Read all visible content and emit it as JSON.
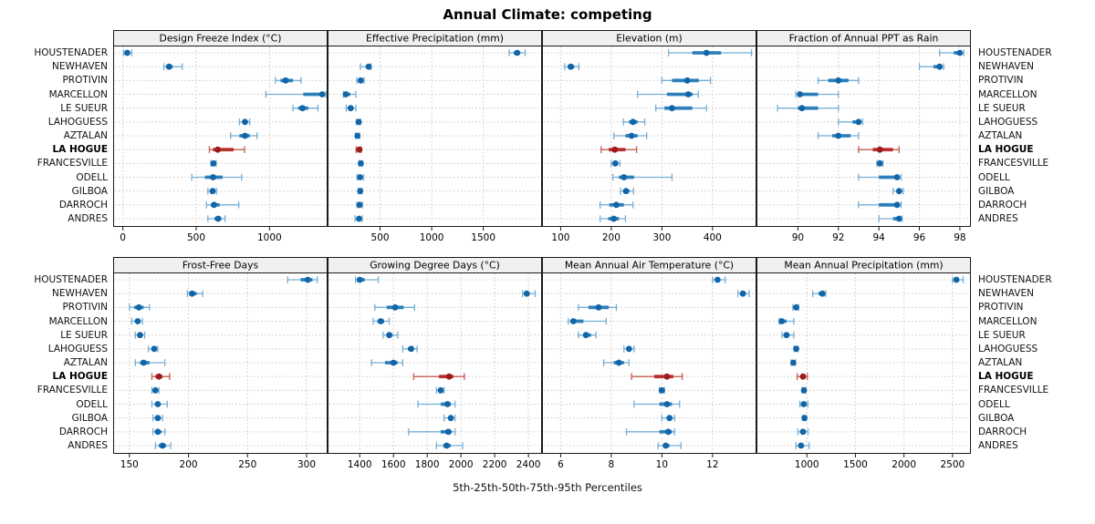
{
  "title": "Annual Climate: competing",
  "xlabel": "5th-25th-50th-75th-95th Percentiles",
  "colors": {
    "normal": {
      "line": "#74aed4",
      "bar": "#1f77b4",
      "dot": "#1265a7"
    },
    "highlight": {
      "line": "#c65b4e",
      "bar": "#b22222",
      "dot": "#9c1c1c"
    },
    "strip_bg": "#f0f0f0",
    "panel_border": "#1a1a1a",
    "grid": "#c8c8c8",
    "text": "#000000"
  },
  "chart_data": {
    "type": "dot-interval",
    "percentiles": [
      5,
      25,
      50,
      75,
      95
    ],
    "layout": {
      "rows": 2,
      "cols": 4,
      "grid": "dotted",
      "legend": "none",
      "row_labels": "left and right sides"
    },
    "locations": [
      "HOUSTENADER",
      "NEWHAVEN",
      "PROTIVIN",
      "MARCELLON",
      "LE SUEUR",
      "LAHOGUESS",
      "AZTALAN",
      "LA HOGUE",
      "FRANCESVILLE",
      "ODELL",
      "GILBOA",
      "DARROCH",
      "ANDRES"
    ],
    "highlight": "LA HOGUE",
    "panels": [
      {
        "row": 0,
        "slug": "design-freeze-index",
        "title": "Design Freeze Index (°C)",
        "xlim": [
          -60,
          1390
        ],
        "ticks": [
          0,
          500,
          1000
        ],
        "values": [
          [
            5,
            18,
            30,
            42,
            60
          ],
          [
            280,
            295,
            315,
            340,
            405
          ],
          [
            1040,
            1075,
            1110,
            1160,
            1215
          ],
          [
            975,
            1230,
            1360,
            1378,
            1385
          ],
          [
            1160,
            1195,
            1225,
            1265,
            1330
          ],
          [
            795,
            815,
            833,
            848,
            865
          ],
          [
            735,
            795,
            833,
            865,
            915
          ],
          [
            590,
            615,
            647,
            755,
            830
          ],
          [
            600,
            610,
            618,
            626,
            636
          ],
          [
            470,
            560,
            615,
            680,
            810
          ],
          [
            580,
            598,
            612,
            624,
            638
          ],
          [
            570,
            600,
            622,
            660,
            790
          ],
          [
            580,
            625,
            650,
            672,
            697
          ]
        ]
      },
      {
        "row": 0,
        "slug": "effective-precipitation",
        "title": "Effective Precipitation (mm)",
        "xlim": [
          0,
          2060
        ],
        "ticks": [
          500,
          1000,
          1500
        ],
        "values": [
          [
            1750,
            1795,
            1828,
            1858,
            1905
          ],
          [
            310,
            360,
            390,
            400,
            412
          ],
          [
            275,
            296,
            312,
            326,
            345
          ],
          [
            145,
            157,
            168,
            212,
            265
          ],
          [
            172,
            196,
            215,
            236,
            266
          ],
          [
            270,
            284,
            293,
            301,
            311
          ],
          [
            262,
            273,
            281,
            290,
            301
          ],
          [
            268,
            286,
            299,
            307,
            316
          ],
          [
            296,
            306,
            313,
            321,
            331
          ],
          [
            278,
            294,
            306,
            321,
            341
          ],
          [
            288,
            299,
            307,
            315,
            325
          ],
          [
            276,
            291,
            301,
            313,
            329
          ],
          [
            256,
            281,
            296,
            311,
            326
          ]
        ]
      },
      {
        "row": 0,
        "slug": "elevation",
        "title": "Elevation (m)",
        "xlim": [
          65,
          485
        ],
        "ticks": [
          100,
          200,
          300,
          400
        ],
        "values": [
          [
            313,
            360,
            388,
            417,
            477
          ],
          [
            108,
            114,
            120,
            127,
            136
          ],
          [
            300,
            320,
            350,
            373,
            396
          ],
          [
            252,
            310,
            352,
            361,
            372
          ],
          [
            288,
            305,
            320,
            360,
            388
          ],
          [
            224,
            235,
            243,
            252,
            266
          ],
          [
            205,
            228,
            240,
            252,
            270
          ],
          [
            180,
            195,
            207,
            228,
            250
          ],
          [
            200,
            204,
            208,
            212,
            217
          ],
          [
            203,
            215,
            225,
            245,
            320
          ],
          [
            218,
            224,
            229,
            236,
            244
          ],
          [
            178,
            196,
            210,
            225,
            243
          ],
          [
            178,
            194,
            205,
            215,
            228
          ]
        ]
      },
      {
        "row": 0,
        "slug": "fraction-annual-ppt-as-rain",
        "title": "Fraction of Annual PPT as Rain",
        "xlim": [
          88,
          98.5
        ],
        "ticks": [
          90,
          92,
          94,
          96,
          98
        ],
        "values": [
          [
            97,
            97.7,
            98,
            98.1,
            98.2
          ],
          [
            96,
            96.7,
            97,
            97.1,
            97.2
          ],
          [
            91,
            91.5,
            92,
            92.5,
            93
          ],
          [
            89.9,
            90,
            90.1,
            91,
            92
          ],
          [
            89,
            90,
            90.2,
            91,
            92
          ],
          [
            92,
            92.7,
            93,
            93.1,
            93.2
          ],
          [
            91,
            91.7,
            92,
            92.6,
            93
          ],
          [
            93,
            93.7,
            94.05,
            94.7,
            95
          ],
          [
            93.9,
            94,
            94.05,
            94.1,
            94.2
          ],
          [
            93,
            94,
            94.9,
            95,
            95.1
          ],
          [
            94.7,
            94.9,
            95,
            95.1,
            95.2
          ],
          [
            93,
            94,
            94.9,
            95.05,
            95.1
          ],
          [
            94,
            94.7,
            95,
            95.05,
            95.15
          ]
        ]
      },
      {
        "row": 1,
        "slug": "frost-free-days",
        "title": "Frost-Free Days",
        "xlim": [
          137,
          317
        ],
        "ticks": [
          150,
          200,
          250,
          300
        ],
        "values": [
          [
            284,
            295,
            301,
            305,
            309
          ],
          [
            199,
            201,
            203,
            207,
            212
          ],
          [
            150,
            154,
            158,
            162,
            167
          ],
          [
            152,
            155,
            157,
            159,
            161
          ],
          [
            155,
            157,
            159,
            161,
            163
          ],
          [
            166,
            169,
            171,
            172,
            174
          ],
          [
            155,
            159,
            162,
            167,
            180
          ],
          [
            169,
            172,
            175,
            178,
            184
          ],
          [
            169,
            171,
            172,
            173,
            175
          ],
          [
            169,
            172,
            174,
            176,
            182
          ],
          [
            170,
            172,
            174,
            176,
            178
          ],
          [
            170,
            172,
            174,
            177,
            180
          ],
          [
            172,
            175,
            178,
            181,
            185
          ]
        ]
      },
      {
        "row": 1,
        "slug": "growing-degree-days",
        "title": "Growing Degree Days (°C)",
        "xlim": [
          1215,
          2475
        ],
        "ticks": [
          1400,
          1600,
          1800,
          2000,
          2200,
          2400
        ],
        "values": [
          [
            1375,
            1390,
            1400,
            1430,
            1510
          ],
          [
            2365,
            2380,
            2390,
            2405,
            2440
          ],
          [
            1490,
            1560,
            1610,
            1660,
            1725
          ],
          [
            1480,
            1505,
            1525,
            1545,
            1575
          ],
          [
            1540,
            1560,
            1575,
            1595,
            1625
          ],
          [
            1655,
            1685,
            1705,
            1720,
            1740
          ],
          [
            1470,
            1550,
            1600,
            1625,
            1655
          ],
          [
            1720,
            1870,
            1930,
            1955,
            2020
          ],
          [
            1855,
            1870,
            1880,
            1890,
            1900
          ],
          [
            1745,
            1880,
            1920,
            1940,
            1965
          ],
          [
            1900,
            1925,
            1940,
            1950,
            1965
          ],
          [
            1690,
            1880,
            1925,
            1945,
            1965
          ],
          [
            1855,
            1895,
            1915,
            1940,
            2010
          ]
        ]
      },
      {
        "row": 1,
        "slug": "mean-annual-air-temperature",
        "title": "Mean Annual Air Temperature (°C)",
        "xlim": [
          5.3,
          13.7
        ],
        "ticks": [
          6,
          8,
          10,
          12
        ],
        "values": [
          [
            12.0,
            12.1,
            12.2,
            12.3,
            12.5
          ],
          [
            13.0,
            13.1,
            13.2,
            13.3,
            13.45
          ],
          [
            6.7,
            7.1,
            7.5,
            7.9,
            8.2
          ],
          [
            6.3,
            6.4,
            6.5,
            6.9,
            7.8
          ],
          [
            6.7,
            6.9,
            7.0,
            7.2,
            7.4
          ],
          [
            8.5,
            8.6,
            8.7,
            8.8,
            8.9
          ],
          [
            7.7,
            8.1,
            8.3,
            8.5,
            8.7
          ],
          [
            8.8,
            9.7,
            10.2,
            10.45,
            10.8
          ],
          [
            9.9,
            9.95,
            10.0,
            10.05,
            10.1
          ],
          [
            8.9,
            9.9,
            10.2,
            10.4,
            10.7
          ],
          [
            10.0,
            10.2,
            10.3,
            10.4,
            10.5
          ],
          [
            8.6,
            9.9,
            10.25,
            10.4,
            10.5
          ],
          [
            9.85,
            10.05,
            10.15,
            10.3,
            10.75
          ]
        ]
      },
      {
        "row": 1,
        "slug": "mean-annual-precipitation",
        "title": "Mean Annual Precipitation (mm)",
        "xlim": [
          490,
          2680
        ],
        "ticks": [
          1000,
          1500,
          2000,
          2500
        ],
        "values": [
          [
            2500,
            2520,
            2540,
            2565,
            2610
          ],
          [
            1060,
            1120,
            1160,
            1175,
            1195
          ],
          [
            855,
            875,
            890,
            900,
            915
          ],
          [
            715,
            730,
            740,
            790,
            865
          ],
          [
            745,
            770,
            790,
            815,
            865
          ],
          [
            870,
            882,
            890,
            898,
            908
          ],
          [
            838,
            850,
            860,
            870,
            882
          ],
          [
            900,
            935,
            960,
            980,
            1005
          ],
          [
            950,
            962,
            970,
            978,
            988
          ],
          [
            928,
            950,
            968,
            985,
            1010
          ],
          [
            958,
            968,
            975,
            983,
            992
          ],
          [
            908,
            938,
            960,
            985,
            1012
          ],
          [
            888,
            920,
            940,
            965,
            1022
          ]
        ]
      }
    ]
  }
}
